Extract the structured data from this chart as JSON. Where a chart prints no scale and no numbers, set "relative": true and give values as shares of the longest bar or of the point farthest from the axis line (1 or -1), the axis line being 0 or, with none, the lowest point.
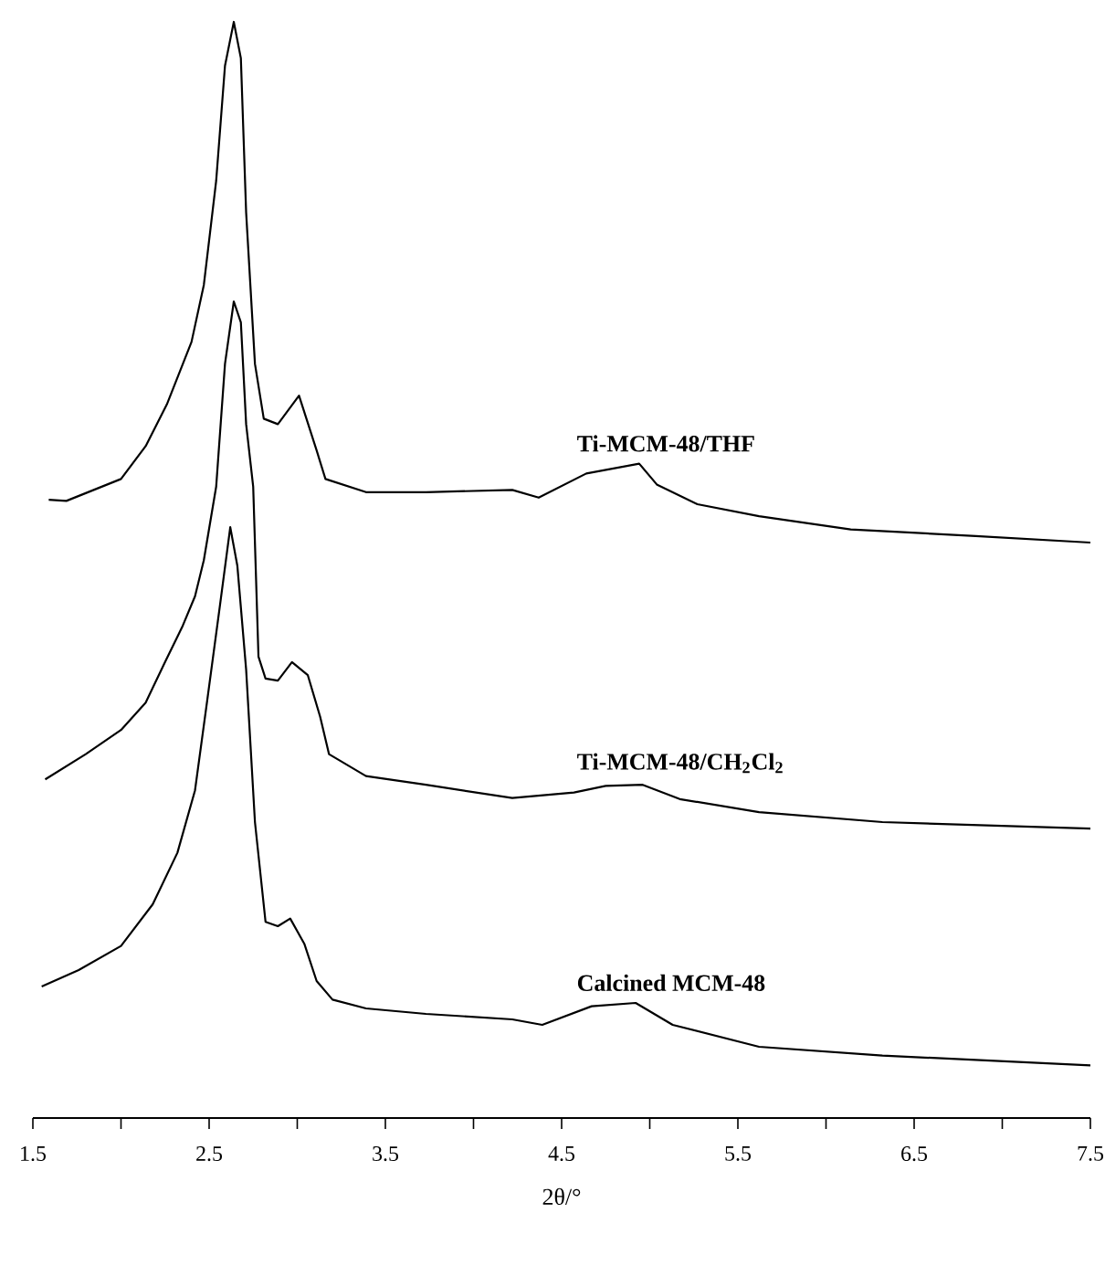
{
  "chart_data": {
    "type": "line",
    "relative": true,
    "xlabel": "2θ/°",
    "xlim": [
      1.5,
      7.5
    ],
    "xticks": [
      1.5,
      {
        "value": 2,
        "label": null
      },
      2.5,
      {
        "value": 3,
        "label": null
      },
      3.5,
      {
        "value": 4,
        "label": null
      },
      4.5,
      {
        "value": 5,
        "label": null
      },
      5.5,
      {
        "value": 6,
        "label": null
      },
      6.5,
      {
        "value": 7,
        "label": null
      },
      7.5
    ],
    "marker": "none",
    "line_style": "solid",
    "series": [
      {
        "name": "Ti-MCM-48/THF",
        "color": "#000000",
        "x": [
          1.59,
          1.69,
          2.0,
          2.14,
          2.26,
          2.4,
          2.47,
          2.54,
          2.59,
          2.64,
          2.68,
          2.71,
          2.76,
          2.81,
          2.89,
          3.01,
          3.11,
          3.16,
          3.39,
          3.73,
          4.22,
          4.37,
          4.64,
          4.94,
          5.04,
          5.27,
          5.62,
          6.14,
          6.85,
          7.5
        ],
        "values": [
          0.564,
          0.563,
          0.583,
          0.613,
          0.651,
          0.708,
          0.76,
          0.855,
          0.96,
          1.0,
          0.967,
          0.826,
          0.688,
          0.638,
          0.633,
          0.659,
          0.609,
          0.583,
          0.571,
          0.571,
          0.573,
          0.566,
          0.588,
          0.597,
          0.578,
          0.56,
          0.549,
          0.537,
          0.531,
          0.525
        ]
      },
      {
        "name": "Ti-MCM-48/CH$_{2}$Cl$_{2}$",
        "color": "#000000",
        "x": [
          1.57,
          1.8,
          2.0,
          2.14,
          2.25,
          2.35,
          2.42,
          2.47,
          2.54,
          2.59,
          2.64,
          2.68,
          2.71,
          2.75,
          2.78,
          2.82,
          2.89,
          2.97,
          3.06,
          3.13,
          3.18,
          3.39,
          3.73,
          4.22,
          4.57,
          4.75,
          4.96,
          5.17,
          5.62,
          6.32,
          7.5
        ],
        "values": [
          0.309,
          0.332,
          0.354,
          0.379,
          0.416,
          0.449,
          0.476,
          0.509,
          0.576,
          0.688,
          0.745,
          0.726,
          0.633,
          0.576,
          0.421,
          0.401,
          0.399,
          0.416,
          0.404,
          0.366,
          0.332,
          0.312,
          0.304,
          0.292,
          0.297,
          0.303,
          0.304,
          0.291,
          0.279,
          0.27,
          0.264
        ]
      },
      {
        "name": "Calcined MCM-48",
        "color": "#000000",
        "x": [
          1.55,
          1.76,
          2.0,
          2.18,
          2.32,
          2.42,
          2.49,
          2.56,
          2.62,
          2.66,
          2.71,
          2.76,
          2.82,
          2.89,
          2.96,
          3.04,
          3.11,
          3.2,
          3.39,
          3.73,
          4.22,
          4.39,
          4.67,
          4.92,
          5.13,
          5.62,
          6.32,
          7.5
        ],
        "values": [
          0.12,
          0.135,
          0.157,
          0.195,
          0.242,
          0.299,
          0.382,
          0.466,
          0.539,
          0.504,
          0.409,
          0.27,
          0.179,
          0.175,
          0.182,
          0.159,
          0.125,
          0.108,
          0.1,
          0.095,
          0.09,
          0.085,
          0.102,
          0.105,
          0.085,
          0.065,
          0.057,
          0.048
        ]
      }
    ]
  }
}
